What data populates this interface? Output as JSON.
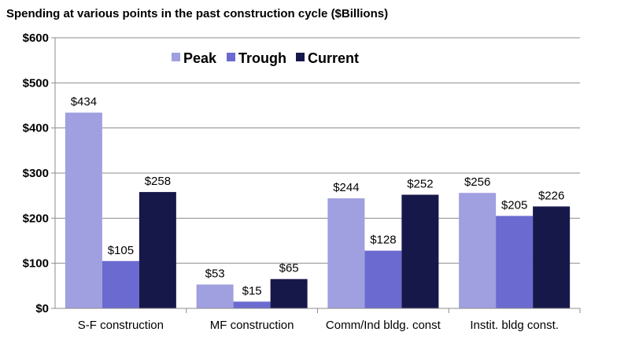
{
  "chart_data": {
    "type": "bar",
    "title": "Spending at various points in the past construction cycle ($Billions)",
    "xlabel": "",
    "ylabel": "",
    "categories": [
      "S-F construction",
      "MF construction",
      "Comm/Ind bldg. const",
      "Instit. bldg const."
    ],
    "series": [
      {
        "name": "Peak",
        "values": [
          434,
          53,
          244,
          256
        ],
        "labels": [
          "$434",
          "$53",
          "$244",
          "$256"
        ],
        "color": "#a09fe0"
      },
      {
        "name": "Trough",
        "values": [
          105,
          15,
          128,
          205
        ],
        "labels": [
          "$105",
          "$15",
          "$128",
          "$205"
        ],
        "color": "#6b6ad0"
      },
      {
        "name": "Current",
        "values": [
          258,
          65,
          252,
          226
        ],
        "labels": [
          "$258",
          "$65",
          "$252",
          "$226"
        ],
        "color": "#17184a"
      }
    ],
    "ylim": [
      0,
      600
    ],
    "yticks": [
      0,
      100,
      200,
      300,
      400,
      500,
      600
    ],
    "ytick_labels": [
      "$0",
      "$100",
      "$200",
      "$300",
      "$400",
      "$500",
      "$600"
    ],
    "grid": true,
    "legend_position": "top-center"
  }
}
